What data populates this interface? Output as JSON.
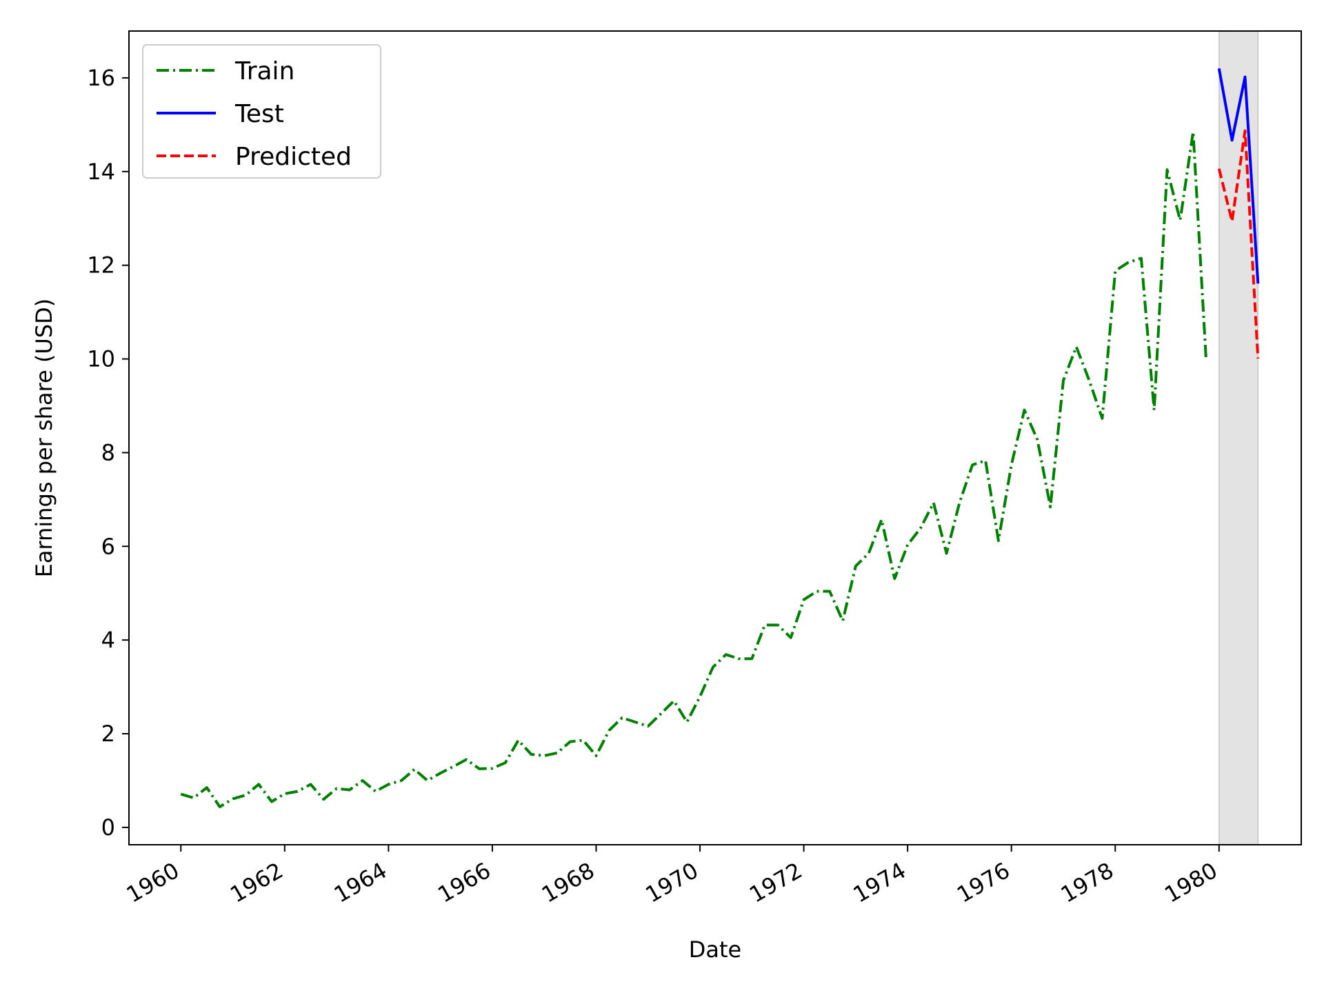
{
  "chart_data": {
    "type": "line",
    "xlabel": "Date",
    "ylabel": "Earnings per share (USD)",
    "x_axis_type": "date",
    "xlim": [
      "1959-01-01",
      "1981-08-01"
    ],
    "ylim": [
      -0.37,
      17.0
    ],
    "x_ticks": [
      "1960",
      "1962",
      "1964",
      "1966",
      "1968",
      "1970",
      "1972",
      "1974",
      "1976",
      "1978",
      "1980"
    ],
    "y_ticks": [
      "0",
      "2",
      "4",
      "6",
      "8",
      "10",
      "12",
      "14",
      "16"
    ],
    "legend_position": "top-left",
    "shaded_region": {
      "x": [
        "1980-01-01",
        "1980-10-01"
      ],
      "color": "#808080"
    },
    "series": [
      {
        "name": "Train",
        "color": "#008000",
        "style": "dashdot",
        "points": [
          [
            "1960-01-01",
            0.71
          ],
          [
            "1960-04-01",
            0.63
          ],
          [
            "1960-07-01",
            0.85
          ],
          [
            "1960-10-01",
            0.44
          ],
          [
            "1961-01-01",
            0.61
          ],
          [
            "1961-04-01",
            0.69
          ],
          [
            "1961-07-01",
            0.92
          ],
          [
            "1961-10-01",
            0.55
          ],
          [
            "1962-01-01",
            0.72
          ],
          [
            "1962-04-01",
            0.77
          ],
          [
            "1962-07-01",
            0.92
          ],
          [
            "1962-10-01",
            0.6
          ],
          [
            "1963-01-01",
            0.83
          ],
          [
            "1963-04-01",
            0.8
          ],
          [
            "1963-07-01",
            1.0
          ],
          [
            "1963-10-01",
            0.77
          ],
          [
            "1964-01-01",
            0.92
          ],
          [
            "1964-04-01",
            1.0
          ],
          [
            "1964-07-01",
            1.24
          ],
          [
            "1964-10-01",
            1.0
          ],
          [
            "1965-01-01",
            1.16
          ],
          [
            "1965-04-01",
            1.3
          ],
          [
            "1965-07-01",
            1.45
          ],
          [
            "1965-10-01",
            1.25
          ],
          [
            "1966-01-01",
            1.26
          ],
          [
            "1966-04-01",
            1.38
          ],
          [
            "1966-07-01",
            1.86
          ],
          [
            "1966-10-01",
            1.56
          ],
          [
            "1967-01-01",
            1.53
          ],
          [
            "1967-04-01",
            1.59
          ],
          [
            "1967-07-01",
            1.83
          ],
          [
            "1967-10-01",
            1.86
          ],
          [
            "1968-01-01",
            1.53
          ],
          [
            "1968-04-01",
            2.07
          ],
          [
            "1968-07-01",
            2.34
          ],
          [
            "1968-10-01",
            2.25
          ],
          [
            "1969-01-01",
            2.16
          ],
          [
            "1969-04-01",
            2.43
          ],
          [
            "1969-07-01",
            2.7
          ],
          [
            "1969-10-01",
            2.25
          ],
          [
            "1970-01-01",
            2.79
          ],
          [
            "1970-04-01",
            3.42
          ],
          [
            "1970-07-01",
            3.69
          ],
          [
            "1970-10-01",
            3.6
          ],
          [
            "1971-01-01",
            3.6
          ],
          [
            "1971-04-01",
            4.32
          ],
          [
            "1971-07-01",
            4.32
          ],
          [
            "1971-10-01",
            4.05
          ],
          [
            "1972-01-01",
            4.86
          ],
          [
            "1972-04-01",
            5.04
          ],
          [
            "1972-07-01",
            5.04
          ],
          [
            "1972-10-01",
            4.41
          ],
          [
            "1973-01-01",
            5.58
          ],
          [
            "1973-04-01",
            5.85
          ],
          [
            "1973-07-01",
            6.57
          ],
          [
            "1973-10-01",
            5.31
          ],
          [
            "1974-01-01",
            6.03
          ],
          [
            "1974-04-01",
            6.39
          ],
          [
            "1974-07-01",
            6.93
          ],
          [
            "1974-10-01",
            5.85
          ],
          [
            "1975-01-01",
            6.93
          ],
          [
            "1975-04-01",
            7.74
          ],
          [
            "1975-07-01",
            7.83
          ],
          [
            "1975-10-01",
            6.12
          ],
          [
            "1976-01-01",
            7.74
          ],
          [
            "1976-04-01",
            8.91
          ],
          [
            "1976-07-01",
            8.28
          ],
          [
            "1976-10-01",
            6.84
          ],
          [
            "1977-01-01",
            9.54
          ],
          [
            "1977-04-01",
            10.26
          ],
          [
            "1977-07-01",
            9.54
          ],
          [
            "1977-10-01",
            8.73
          ],
          [
            "1978-01-01",
            11.88
          ],
          [
            "1978-04-01",
            12.06
          ],
          [
            "1978-07-01",
            12.15
          ],
          [
            "1978-10-01",
            8.91
          ],
          [
            "1979-01-01",
            14.04
          ],
          [
            "1979-04-01",
            12.96
          ],
          [
            "1979-07-01",
            14.85
          ],
          [
            "1979-10-01",
            9.99
          ]
        ]
      },
      {
        "name": "Test",
        "color": "#0000ff",
        "style": "solid",
        "points": [
          [
            "1980-01-01",
            16.2
          ],
          [
            "1980-04-01",
            14.67
          ],
          [
            "1980-07-01",
            16.02
          ],
          [
            "1980-10-01",
            11.61
          ]
        ]
      },
      {
        "name": "Predicted",
        "color": "#ff0000",
        "style": "dashed",
        "points": [
          [
            "1980-01-01",
            14.06
          ],
          [
            "1980-04-01",
            12.94
          ],
          [
            "1980-07-01",
            14.87
          ],
          [
            "1980-10-01",
            10.01
          ]
        ]
      }
    ]
  }
}
